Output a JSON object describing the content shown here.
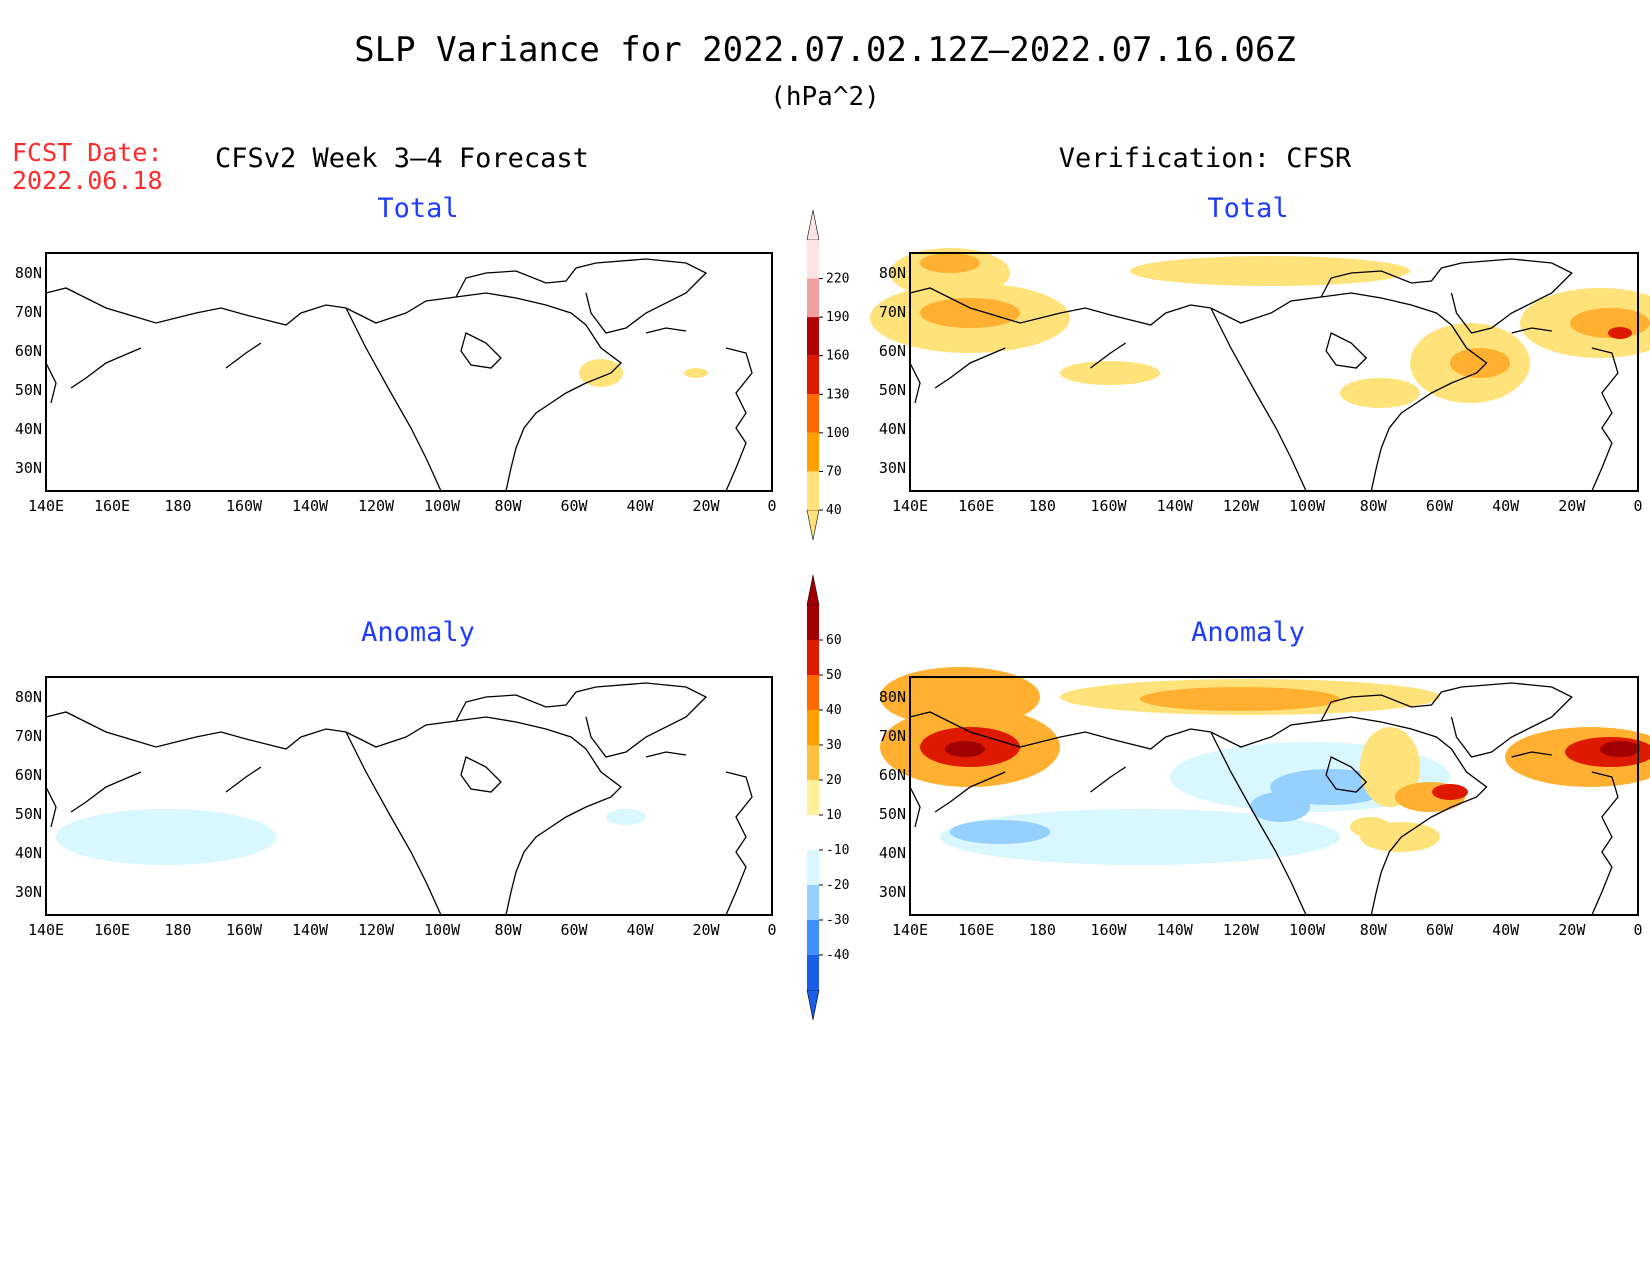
{
  "title": "SLP Variance for 2022.07.02.12Z–2022.07.16.06Z",
  "units": "(hPa^2)",
  "fcst_date_label": "FCST Date:",
  "fcst_date_value": "2022.06.18",
  "left_header": "CFSv2 Week 3–4 Forecast",
  "right_header": "Verification: CFSR",
  "panel_titles": {
    "total": "Total",
    "anomaly": "Anomaly"
  },
  "lat_labels": [
    "80N",
    "70N",
    "60N",
    "50N",
    "40N",
    "30N"
  ],
  "lon_labels": [
    "140E",
    "160E",
    "180",
    "160W",
    "140W",
    "120W",
    "100W",
    "80W",
    "60W",
    "40W",
    "20W",
    "0"
  ],
  "colorbar_total": {
    "labels": [
      "220",
      "190",
      "160",
      "130",
      "100",
      "70",
      "40"
    ],
    "colors": [
      "#fde3e3",
      "#f0a0a0",
      "#b00000",
      "#dd1a00",
      "#ff6a00",
      "#ff9f00",
      "#ffe27a"
    ]
  },
  "colorbar_anomaly": {
    "labels": [
      "60",
      "50",
      "40",
      "30",
      "20",
      "10",
      "-10",
      "-20",
      "-30",
      "-40"
    ],
    "colors": [
      "#a00000",
      "#dd1a00",
      "#ff6a00",
      "#ff9f00",
      "#ffc040",
      "#ffef9a",
      "#ffffff",
      "#d8f7ff",
      "#96d0ff",
      "#4090ff",
      "#1a5ee8"
    ]
  },
  "colors": {
    "title_blue": "#1f3cff",
    "fcst_red": "#ff2a2a"
  }
}
